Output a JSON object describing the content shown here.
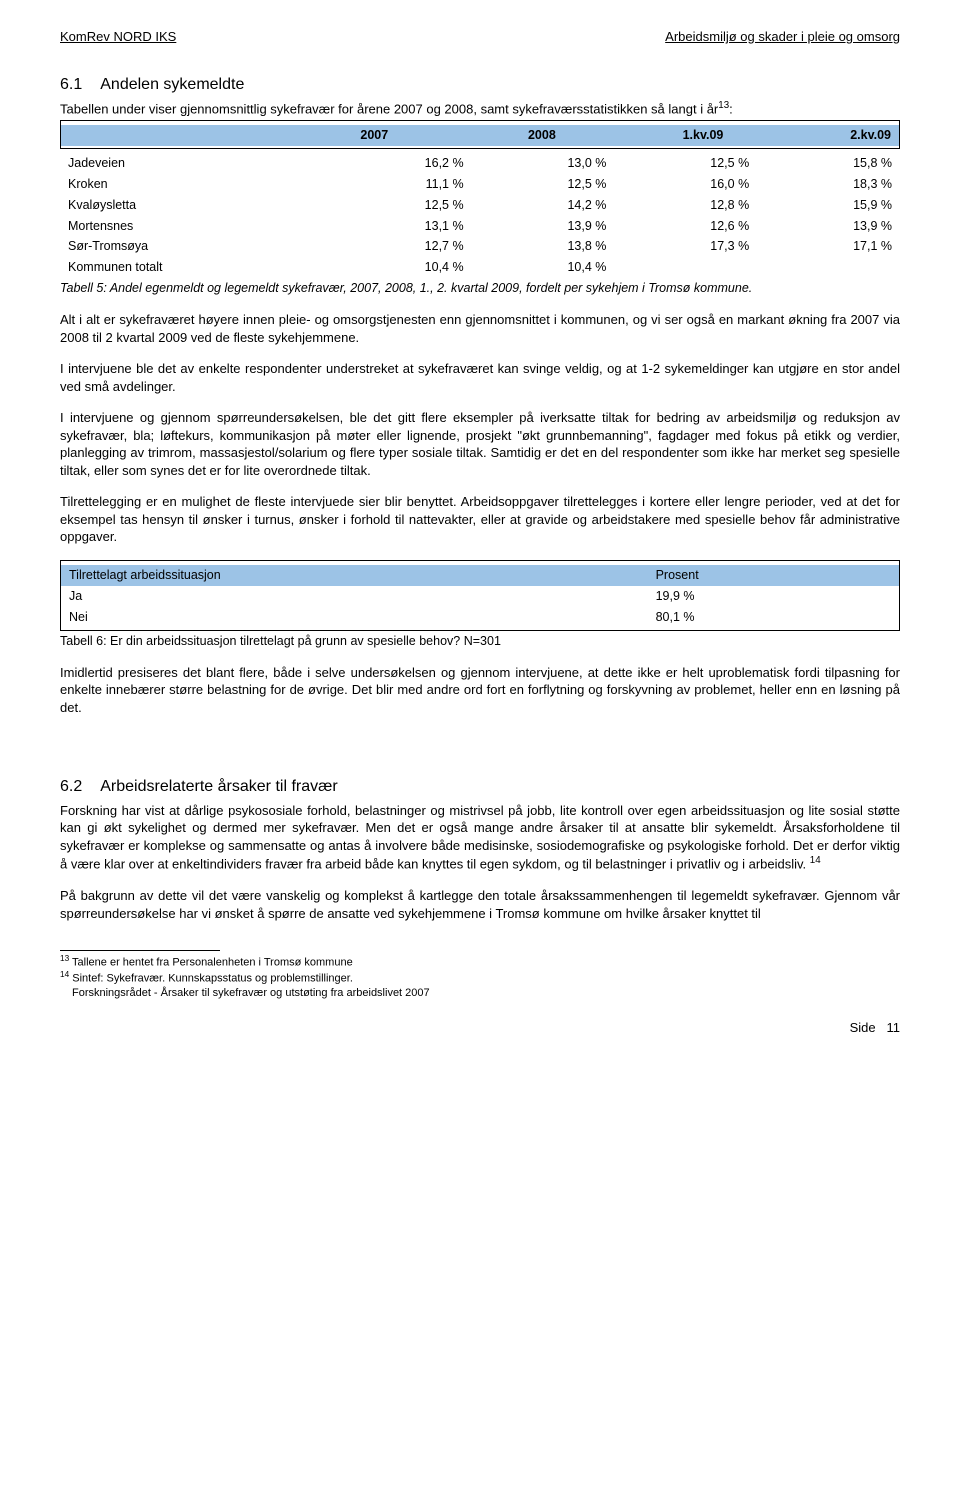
{
  "header": {
    "left": "KomRev NORD IKS",
    "right": "Arbeidsmiljø og skader i pleie og omsorg"
  },
  "section61": {
    "number": "6.1",
    "title": "Andelen sykemeldte",
    "intro_part1": "Tabellen under viser gjennomsnittlig sykefravær for årene 2007 og 2008, samt sykefraværsstatistikken så langt i år",
    "intro_sup": "13",
    "intro_part2": ":"
  },
  "table5": {
    "header_bg": "#9cc3e6",
    "columns": [
      "",
      "2007",
      "2008",
      "1.kv.09",
      "2.kv.09"
    ],
    "rows": [
      [
        "Jadeveien",
        "16,2 %",
        "13,0 %",
        "12,5 %",
        "15,8 %"
      ],
      [
        "Kroken",
        "11,1 %",
        "12,5 %",
        "16,0 %",
        "18,3 %"
      ],
      [
        "Kvaløysletta",
        "12,5 %",
        "14,2 %",
        "12,8 %",
        "15,9 %"
      ],
      [
        "Mortensnes",
        "13,1 %",
        "13,9 %",
        "12,6 %",
        "13,9 %"
      ],
      [
        "Sør-Tromsøya",
        "12,7 %",
        "13,8 %",
        "17,3 %",
        "17,1 %"
      ],
      [
        "Kommunen totalt",
        "10,4 %",
        "10,4 %",
        "",
        ""
      ]
    ],
    "caption": "Tabell 5: Andel egenmeldt og legemeldt sykefravær, 2007, 2008, 1., 2. kvartal 2009, fordelt per sykehjem i Tromsø kommune."
  },
  "paras61": {
    "p1": "Alt i alt er sykefraværet høyere innen pleie- og omsorgstjenesten enn gjennomsnittet i kommunen, og vi ser også en markant økning fra 2007 via 2008 til 2 kvartal 2009 ved de fleste sykehjemmene.",
    "p2": "I intervjuene ble det av enkelte respondenter understreket at sykefraværet kan svinge veldig, og at 1-2 sykemeldinger kan utgjøre en stor andel ved små avdelinger.",
    "p3": "I intervjuene og gjennom spørreundersøkelsen, ble det gitt flere eksempler på iverksatte tiltak for bedring av arbeidsmiljø og reduksjon av sykefravær, bla; løftekurs, kommunikasjon på møter eller lignende, prosjekt \"økt grunnbemanning\", fagdager med fokus på etikk og verdier, planlegging av trimrom, massasjestol/solarium og flere typer sosiale tiltak. Samtidig er det en del respondenter som ikke har merket seg spesielle tiltak, eller som synes det er for lite overordnede tiltak.",
    "p4": "Tilrettelegging er en mulighet de fleste intervjuede sier blir benyttet. Arbeidsoppgaver tilrettelegges i kortere eller lengre perioder, ved at det for eksempel tas hensyn til ønsker i turnus, ønsker i forhold til nattevakter, eller at gravide og arbeidstakere med spesielle behov får administrative oppgaver."
  },
  "table6": {
    "header_bg": "#9cc3e6",
    "columns": [
      "Tilrettelagt arbeidssituasjon",
      "Prosent"
    ],
    "rows": [
      [
        "Ja",
        "19,9 %"
      ],
      [
        "Nei",
        "80,1 %"
      ]
    ],
    "caption": "Tabell 6: Er din arbeidssituasjon tilrettelagt på grunn av spesielle behov? N=301"
  },
  "paras61b": {
    "p5": "Imidlertid presiseres det blant flere, både i selve undersøkelsen og gjennom intervjuene, at dette ikke er helt uproblematisk fordi tilpasning for enkelte innebærer større belastning for de øvrige. Det blir med andre ord fort en forflytning og forskyvning av problemet, heller enn en løsning på det."
  },
  "section62": {
    "number": "6.2",
    "title": "Arbeidsrelaterte årsaker til fravær",
    "p1_part1": "Forskning har vist at dårlige psykososiale forhold, belastninger og mistrivsel på jobb, lite kontroll over egen arbeidssituasjon og lite sosial støtte kan gi økt sykelighet og dermed mer sykefravær. Men det er også mange andre årsaker til at ansatte blir sykemeldt. Årsaksforholdene til sykefravær er komplekse og sammensatte og antas å involvere både medisinske, sosiodemografiske og psykologiske forhold. Det er derfor viktig å være klar over at enkeltindividers fravær fra arbeid både kan knyttes til egen sykdom, og til belastninger i privatliv og i arbeidsliv. ",
    "p1_sup": "14",
    "p2": "På bakgrunn av dette vil det være vanskelig og komplekst å kartlegge den totale årsakssammenhengen til legemeldt sykefravær. Gjennom vår spørreundersøkelse har vi ønsket å spørre de ansatte ved sykehjemmene i Tromsø kommune om hvilke årsaker knyttet til"
  },
  "footnotes": {
    "f13_sup": "13",
    "f13": " Tallene er hentet fra Personalenheten i Tromsø kommune",
    "f14_sup": "14",
    "f14": " Sintef: Sykefravær. Kunnskapsstatus og problemstillinger.",
    "f_extra": "Forskningsrådet - Årsaker til sykefravær og utstøting fra arbeidslivet 2007"
  },
  "footer": {
    "label": "Side",
    "page": "11"
  }
}
